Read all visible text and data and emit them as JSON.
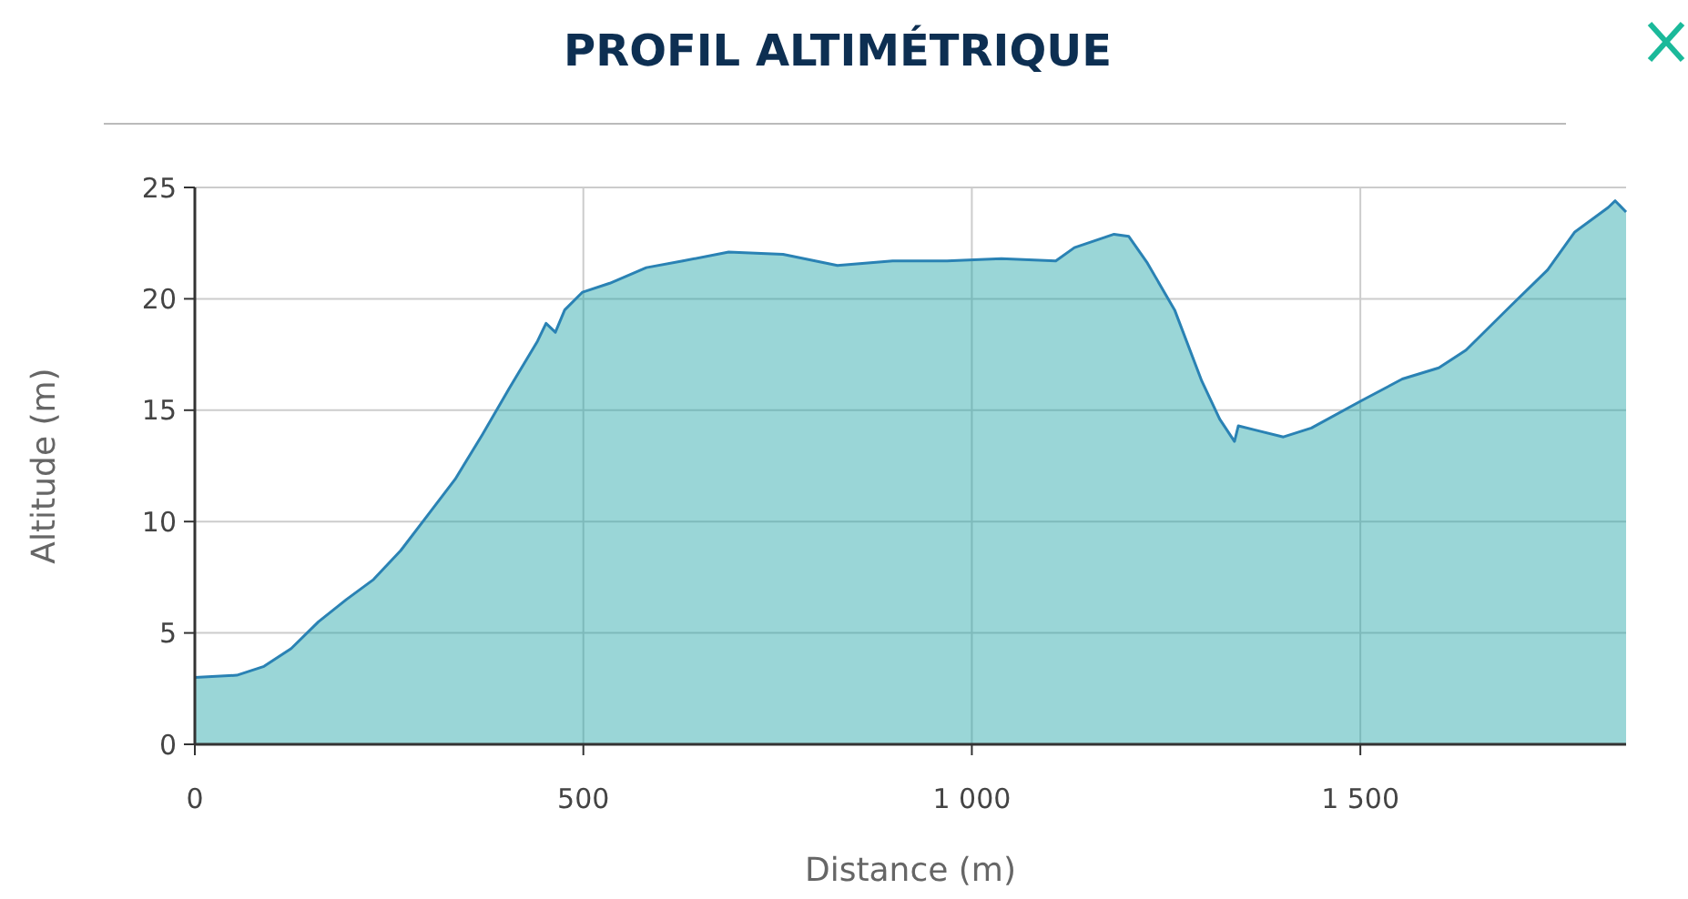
{
  "chart_data": {
    "type": "area",
    "title": "PROFIL ALTIMÉTRIQUE",
    "xlabel": "Distance (m)",
    "ylabel": "Altitude (m)",
    "x": [
      0,
      54,
      89,
      124,
      159,
      195,
      230,
      265,
      300,
      335,
      370,
      405,
      441,
      452,
      464,
      476,
      499,
      534,
      581,
      628,
      687,
      757,
      827,
      898,
      968,
      1038,
      1108,
      1132,
      1183,
      1202,
      1226,
      1261,
      1296,
      1319,
      1338,
      1343,
      1366,
      1401,
      1437,
      1500,
      1554,
      1601,
      1636,
      1694,
      1741,
      1776,
      1819,
      1828,
      1842
    ],
    "series": [
      {
        "color": "#2a82b4",
        "values": [
          3.0,
          3.1,
          3.5,
          4.3,
          5.5,
          6.5,
          7.4,
          8.7,
          10.3,
          11.9,
          13.9,
          16.0,
          18.1,
          18.9,
          18.5,
          19.5,
          20.3,
          20.7,
          21.4,
          21.7,
          22.1,
          22.0,
          21.5,
          21.7,
          21.7,
          21.8,
          21.7,
          22.3,
          22.9,
          22.8,
          21.6,
          19.5,
          16.3,
          14.6,
          13.6,
          14.3,
          14.1,
          13.8,
          14.2,
          15.4,
          16.4,
          16.9,
          17.7,
          19.7,
          21.3,
          23.0,
          24.1,
          24.4,
          23.9
        ]
      }
    ],
    "xlim": [
      0,
      1842
    ],
    "xticks": [
      0,
      500,
      {
        "value": 1000,
        "label": "1 000"
      },
      {
        "value": 1500,
        "label": "1 500"
      }
    ],
    "ylim": [
      0,
      25
    ],
    "yticks": [
      0,
      5,
      10,
      15,
      20,
      25
    ],
    "grid": true
  }
}
